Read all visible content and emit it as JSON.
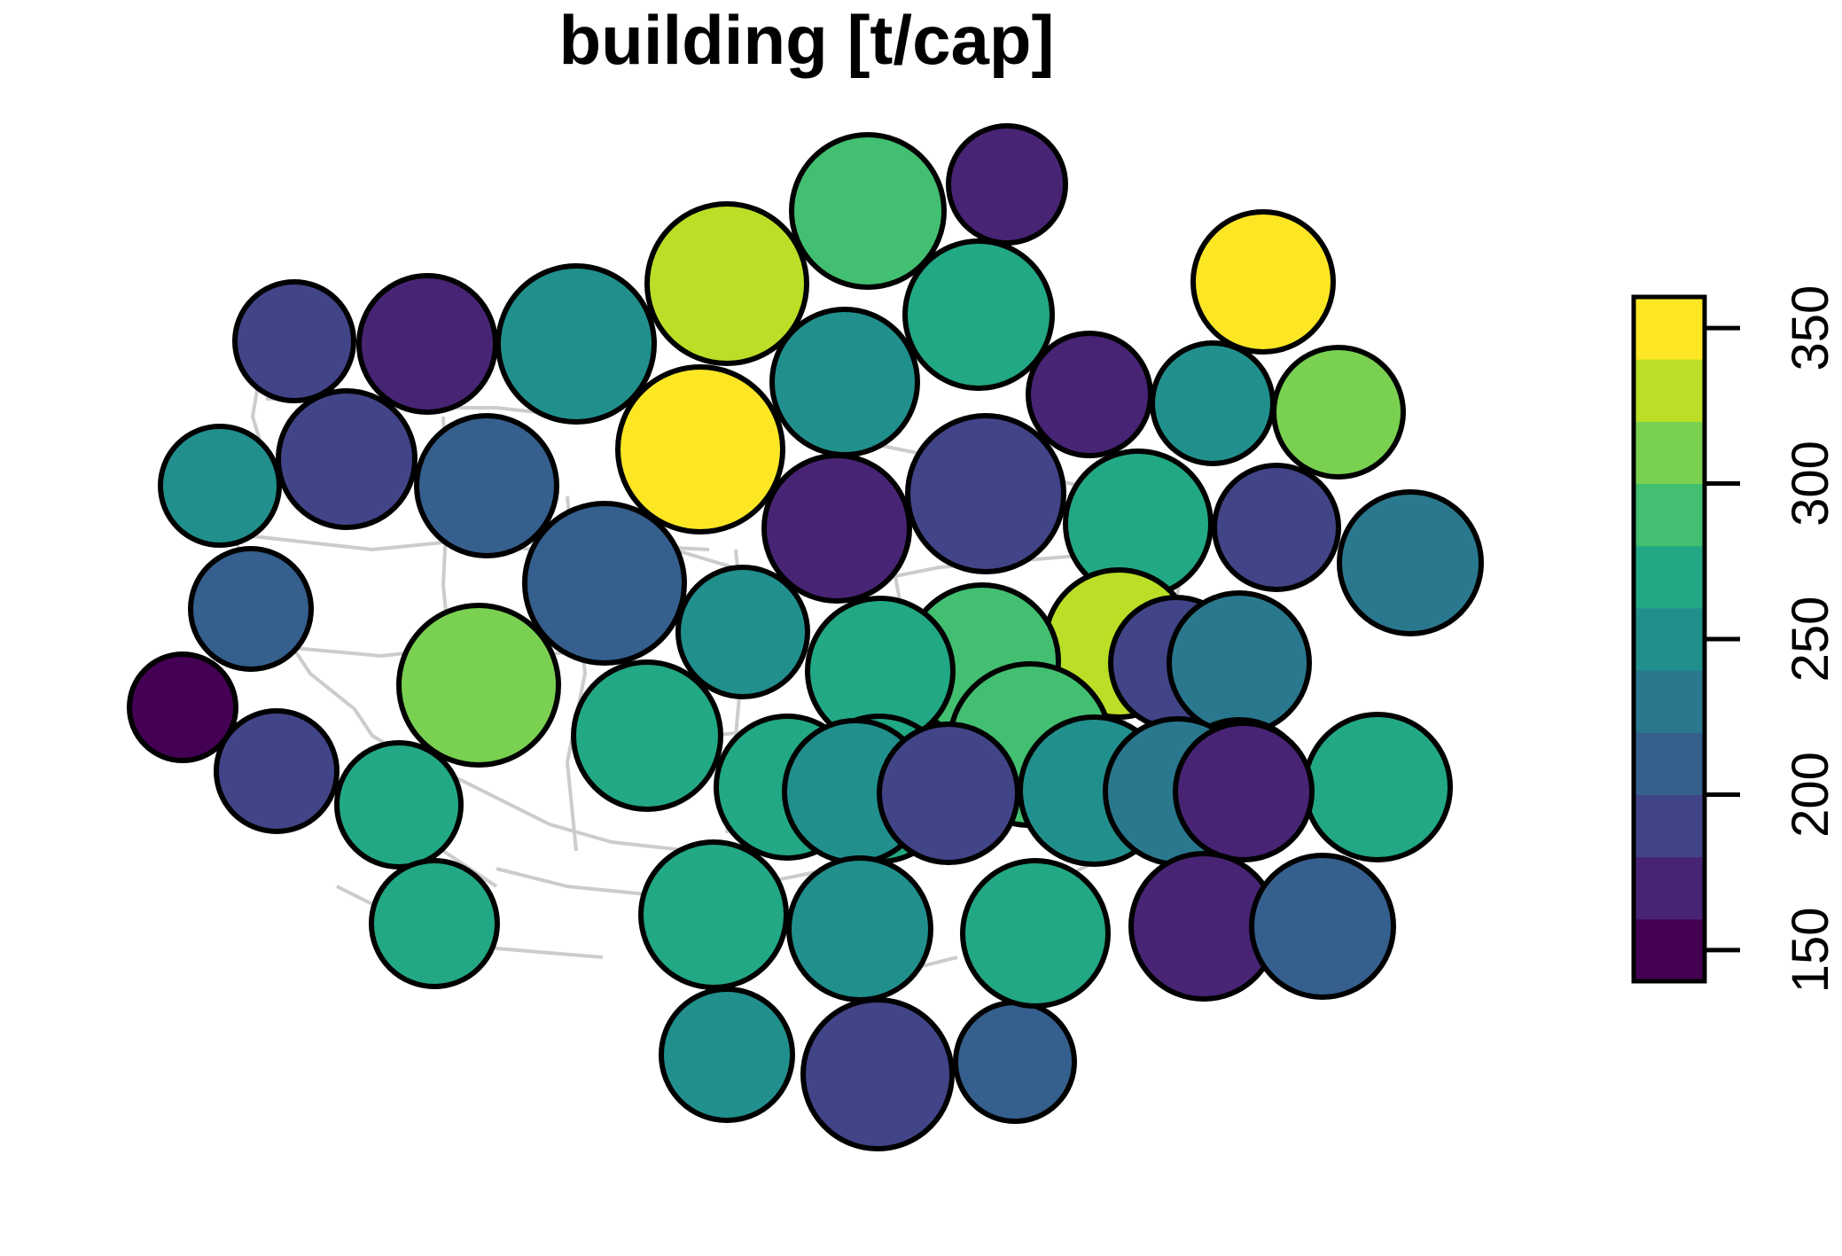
{
  "title": "building [t/cap]",
  "legend": {
    "ticks": [
      "150",
      "200",
      "250",
      "300",
      "350"
    ],
    "tick_values": [
      150,
      200,
      250,
      300,
      350
    ],
    "range": [
      140,
      360
    ],
    "bin_width": 20,
    "colors": [
      "#440154",
      "#482475",
      "#414487",
      "#355F8D",
      "#2A788E",
      "#21908D",
      "#22A884",
      "#43BF71",
      "#7AD151",
      "#BBDF27",
      "#FDE725"
    ],
    "orientation": "vertical",
    "placement": "right"
  },
  "chart_data": {
    "type": "dorling-cartogram",
    "variable": "building [t/cap]",
    "basemap": "region outlines (light grey)",
    "values": [
      332,
      290,
      175,
      340,
      268,
      245,
      175,
      250,
      310,
      250,
      178,
      188,
      195,
      355,
      210,
      245,
      185,
      232,
      170,
      192,
      210,
      270,
      335,
      280,
      275,
      245,
      190,
      230,
      145,
      315,
      265,
      215,
      270,
      295,
      188,
      255,
      270,
      290,
      270,
      268,
      245,
      190,
      235,
      175,
      265,
      255,
      188,
      255,
      275,
      212,
      270,
      175,
      210
    ]
  }
}
